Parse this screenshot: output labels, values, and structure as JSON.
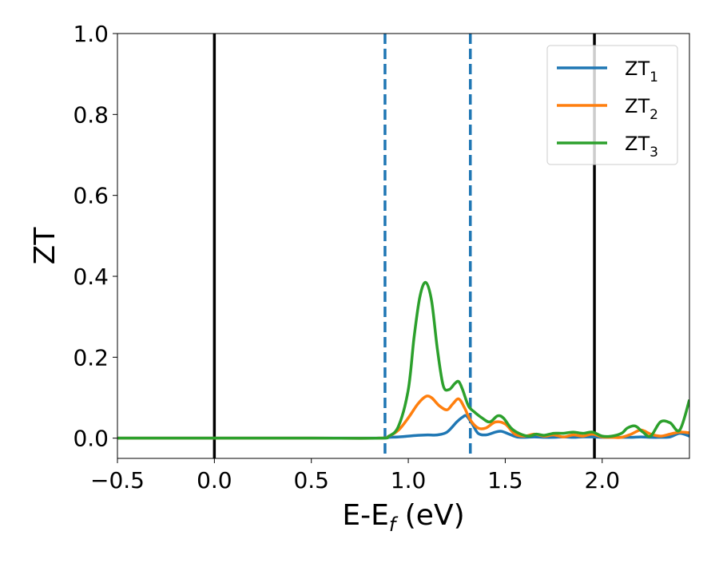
{
  "chart_data": {
    "type": "line",
    "xlabel": "E-E",
    "xlabel_sub": "f",
    "xlabel_unit": " (eV)",
    "ylabel": "ZT",
    "xlim": [
      -0.5,
      2.45
    ],
    "ylim": [
      -0.05,
      1.0
    ],
    "x_ticks": [
      -0.5,
      0.0,
      0.5,
      1.0,
      1.5,
      2.0
    ],
    "x_tick_labels": [
      "−0.5",
      "0.0",
      "0.5",
      "1.0",
      "1.5",
      "2.0"
    ],
    "y_ticks": [
      0.0,
      0.2,
      0.4,
      0.6,
      0.8,
      1.0
    ],
    "y_tick_labels": [
      "0.0",
      "0.2",
      "0.4",
      "0.6",
      "0.8",
      "1.0"
    ],
    "grid": false,
    "legend_position": "top-right",
    "vertical_lines": [
      {
        "x": 0.0,
        "style": "solid",
        "color": "#000000"
      },
      {
        "x": 1.96,
        "style": "solid",
        "color": "#000000"
      },
      {
        "x": 0.88,
        "style": "dashed",
        "color": "#1f77b4"
      },
      {
        "x": 1.32,
        "style": "dashed",
        "color": "#1f77b4"
      }
    ],
    "series": [
      {
        "name": "ZT",
        "name_sub": "1",
        "color": "#1f77b4",
        "x": [
          -0.5,
          0.0,
          0.5,
          0.85,
          0.9,
          0.95,
          1.0,
          1.05,
          1.1,
          1.15,
          1.2,
          1.25,
          1.28,
          1.3,
          1.33,
          1.36,
          1.4,
          1.45,
          1.48,
          1.52,
          1.56,
          1.6,
          1.65,
          1.7,
          1.75,
          1.8,
          1.85,
          1.9,
          1.95,
          2.0,
          2.05,
          2.1,
          2.15,
          2.2,
          2.25,
          2.3,
          2.35,
          2.4,
          2.45
        ],
        "y": [
          0.0,
          0.0,
          0.0,
          0.0,
          0.002,
          0.003,
          0.005,
          0.007,
          0.008,
          0.008,
          0.015,
          0.04,
          0.052,
          0.055,
          0.035,
          0.012,
          0.008,
          0.015,
          0.017,
          0.01,
          0.003,
          0.002,
          0.003,
          0.002,
          0.002,
          0.003,
          0.002,
          0.003,
          0.003,
          0.002,
          0.002,
          0.002,
          0.002,
          0.003,
          0.002,
          0.002,
          0.003,
          0.012,
          0.005
        ]
      },
      {
        "name": "ZT",
        "name_sub": "2",
        "color": "#ff7f0e",
        "x": [
          -0.5,
          0.0,
          0.5,
          0.85,
          0.9,
          0.95,
          1.0,
          1.05,
          1.09,
          1.12,
          1.16,
          1.2,
          1.23,
          1.26,
          1.29,
          1.32,
          1.36,
          1.4,
          1.45,
          1.5,
          1.55,
          1.6,
          1.65,
          1.7,
          1.75,
          1.8,
          1.85,
          1.9,
          1.95,
          2.0,
          2.05,
          2.1,
          2.15,
          2.2,
          2.25,
          2.3,
          2.35,
          2.4,
          2.45
        ],
        "y": [
          0.0,
          0.0,
          0.0,
          0.0,
          0.005,
          0.02,
          0.05,
          0.085,
          0.103,
          0.1,
          0.08,
          0.07,
          0.085,
          0.097,
          0.075,
          0.045,
          0.025,
          0.025,
          0.04,
          0.035,
          0.01,
          0.005,
          0.01,
          0.005,
          0.008,
          0.003,
          0.008,
          0.005,
          0.01,
          0.003,
          0.002,
          0.002,
          0.01,
          0.02,
          0.01,
          0.005,
          0.01,
          0.015,
          0.013
        ]
      },
      {
        "name": "ZT",
        "name_sub": "3",
        "color": "#2ca02c",
        "x": [
          -0.5,
          0.0,
          0.5,
          0.85,
          0.9,
          0.95,
          1.0,
          1.03,
          1.06,
          1.09,
          1.12,
          1.15,
          1.18,
          1.21,
          1.24,
          1.26,
          1.28,
          1.31,
          1.34,
          1.38,
          1.42,
          1.46,
          1.49,
          1.53,
          1.57,
          1.62,
          1.66,
          1.7,
          1.75,
          1.8,
          1.85,
          1.9,
          1.95,
          2.0,
          2.05,
          2.1,
          2.13,
          2.17,
          2.21,
          2.25,
          2.3,
          2.35,
          2.4,
          2.45
        ],
        "y": [
          0.0,
          0.0,
          0.0,
          0.0,
          0.005,
          0.03,
          0.12,
          0.25,
          0.35,
          0.385,
          0.34,
          0.22,
          0.13,
          0.12,
          0.135,
          0.14,
          0.12,
          0.08,
          0.065,
          0.05,
          0.04,
          0.055,
          0.05,
          0.025,
          0.012,
          0.005,
          0.01,
          0.007,
          0.012,
          0.012,
          0.015,
          0.012,
          0.015,
          0.005,
          0.005,
          0.012,
          0.025,
          0.03,
          0.015,
          0.005,
          0.04,
          0.038,
          0.02,
          0.095
        ]
      }
    ]
  }
}
